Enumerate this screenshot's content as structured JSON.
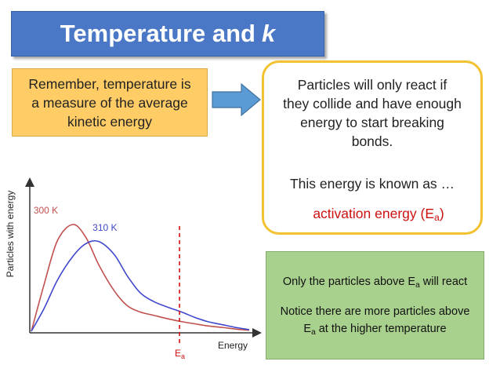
{
  "title": {
    "text": "Temperature and",
    "italic_part": "k",
    "color": "#4a78c6"
  },
  "remember": {
    "lines": [
      "Remember, temperature is",
      "a measure of the average",
      "kinetic energy"
    ],
    "color": "#ffcc66"
  },
  "arrow": {
    "icon": "right-arrow-icon",
    "color": "#5b9bd5"
  },
  "particles": {
    "lines": [
      "Particles will only react if",
      "they collide and have enough",
      "energy to start breaking",
      "bonds."
    ],
    "known_as": "This energy is known as …",
    "activation_text": "activation energy (E",
    "activation_sub": "a",
    "activation_close": ")",
    "border_color": "#f2c230"
  },
  "green": {
    "line1_pre": "Only the particles above E",
    "line1_sub": "a",
    "line1_post": " will react",
    "line2": "Notice there are more particles above",
    "line3_pre": "E",
    "line3_sub": "a",
    "line3_post": " at the higher temperature",
    "color": "#a9d18e"
  },
  "chart_data": {
    "type": "line",
    "title": "",
    "xlabel": "Energy",
    "ylabel": "Particles with energy",
    "grid": false,
    "x": [
      0,
      0.06,
      0.12,
      0.19,
      0.25,
      0.31,
      0.38,
      0.44,
      0.5,
      0.56,
      0.62,
      0.69,
      0.75,
      0.81,
      0.88,
      0.94,
      1.0
    ],
    "series": [
      {
        "name": "300 K",
        "color": "#c0504d",
        "values": [
          0.0,
          0.45,
          0.85,
          1.0,
          0.88,
          0.62,
          0.38,
          0.24,
          0.18,
          0.15,
          0.12,
          0.09,
          0.07,
          0.05,
          0.035,
          0.02,
          0.01
        ]
      },
      {
        "name": "310 K",
        "color": "#3f48cc",
        "values": [
          0.0,
          0.22,
          0.48,
          0.7,
          0.82,
          0.84,
          0.72,
          0.52,
          0.36,
          0.28,
          0.23,
          0.18,
          0.13,
          0.09,
          0.06,
          0.035,
          0.015
        ]
      }
    ],
    "threshold": {
      "x": 0.68,
      "label": "E",
      "label_sub": "a",
      "color": "#cc1111"
    }
  }
}
